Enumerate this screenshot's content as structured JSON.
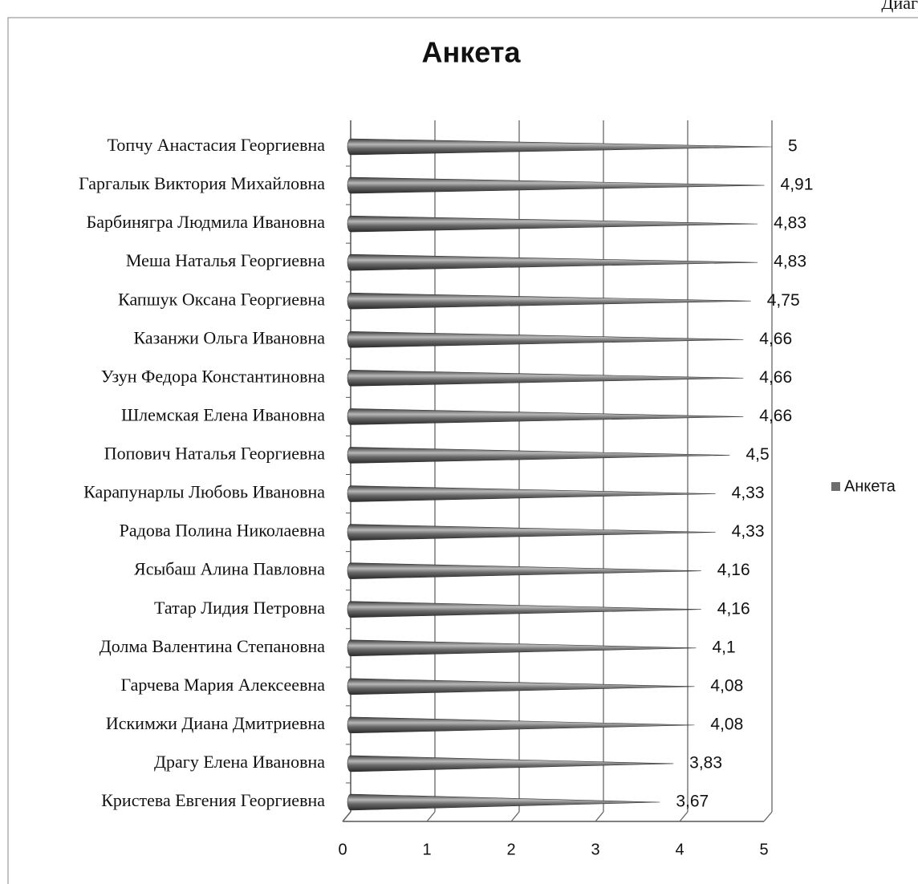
{
  "chart_data": {
    "type": "cone-bar-horizontal",
    "corner_text": "Диаг",
    "title": "Анкета",
    "categories": [
      "Топчу Анастасия Георгиевна",
      "Гаргалык Виктория Михайловна",
      "Барбинягра Людмила Ивановна",
      "Меша Наталья Георгиевна",
      "Капшук Оксана Георгиевна",
      "Казанжи Ольга Ивановна",
      "Узун Федора Константиновна",
      "Шлемская Елена Ивановна",
      "Попович Наталья Георгиевна",
      "Карапунарлы Любовь Ивановна",
      "Радова Полина Николаевна",
      "Ясыбаш Алина Павловна",
      "Татар Лидия Петровна",
      "Долма Валентина Степановна",
      "Гарчева Мария Алексеевна",
      "Искимжи Диана Дмитриевна",
      "Драгу Елена Ивановна",
      "Кристева Евгения Георгиевна"
    ],
    "series": [
      {
        "name": "Анкета",
        "color": "#6e6e6e",
        "values": [
          5,
          4.91,
          4.83,
          4.83,
          4.75,
          4.66,
          4.66,
          4.66,
          4.5,
          4.33,
          4.33,
          4.16,
          4.16,
          4.1,
          4.08,
          4.08,
          3.83,
          3.67
        ],
        "value_labels": [
          "5",
          "4,91",
          "4,83",
          "4,83",
          "4,75",
          "4,66",
          "4,66",
          "4,66",
          "4,5",
          "4,33",
          "4,33",
          "4,16",
          "4,16",
          "4,1",
          "4,08",
          "4,08",
          "3,83",
          "3,67"
        ]
      }
    ],
    "xlim": [
      0,
      5
    ],
    "xticks": [
      0,
      1,
      2,
      3,
      4,
      5
    ],
    "grid": true,
    "legend": "right"
  }
}
